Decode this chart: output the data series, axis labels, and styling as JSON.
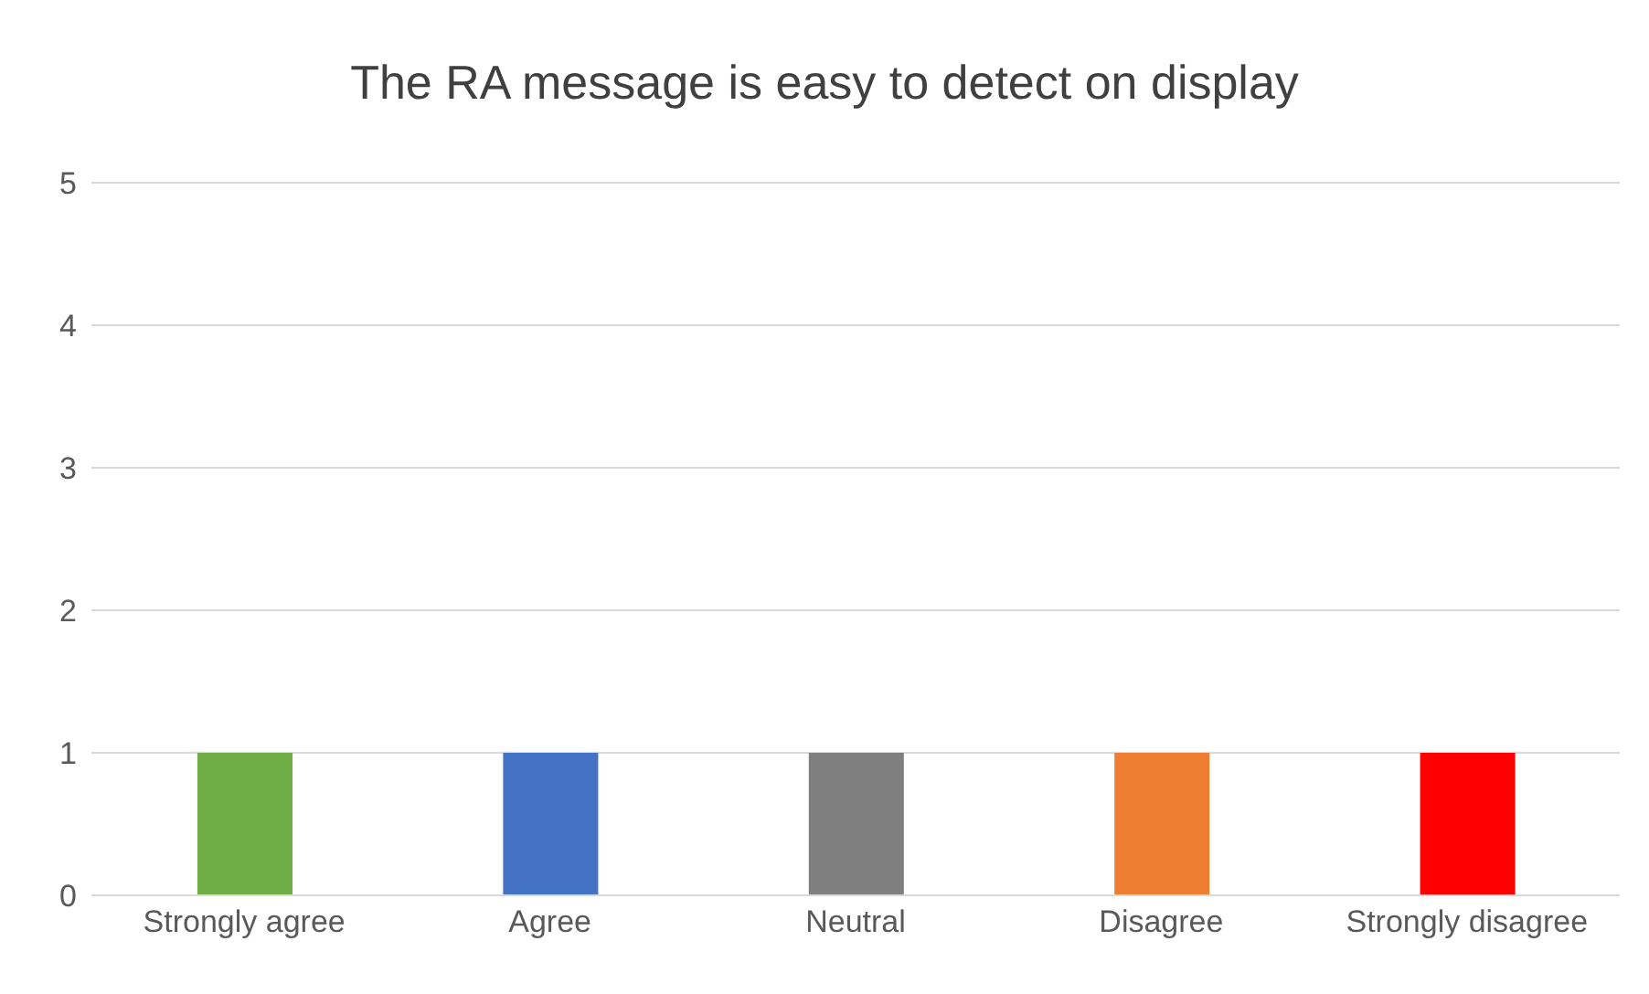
{
  "chart_data": {
    "type": "bar",
    "title": "The RA message is easy to detect on display",
    "categories": [
      "Strongly agree",
      "Agree",
      "Neutral",
      "Disagree",
      "Strongly disagree"
    ],
    "values": [
      1,
      1,
      1,
      1,
      1
    ],
    "colors": [
      "#70ad47",
      "#4472c4",
      "#7f7f7f",
      "#ed7d31",
      "#ff0000"
    ],
    "ylim": [
      0,
      5
    ],
    "yticks": [
      0,
      1,
      2,
      3,
      4,
      5
    ],
    "grid": "y"
  }
}
